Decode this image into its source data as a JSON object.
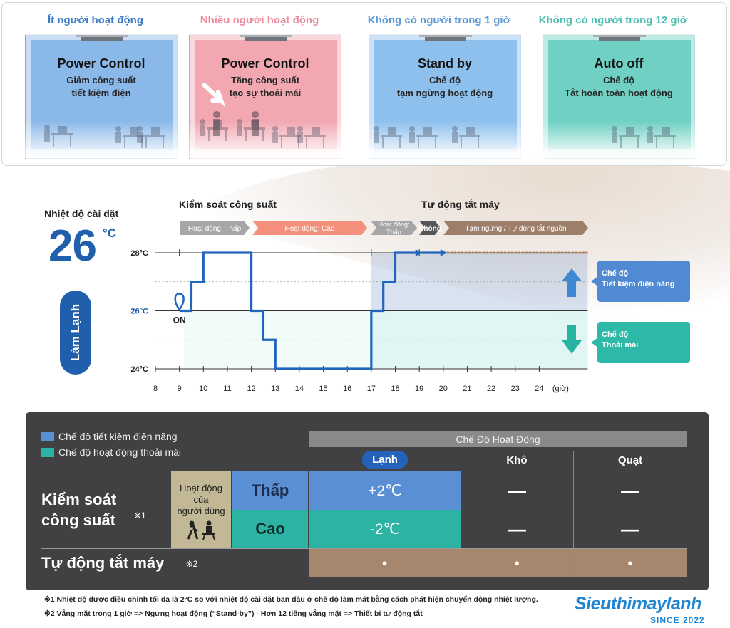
{
  "cards": [
    {
      "title": "Ít người hoạt động",
      "title_color": "#3a7cc6",
      "heading": "Power Control",
      "line1": "Giảm công suất",
      "line2": "tiết kiệm điện",
      "room_color": "#8ab8e8"
    },
    {
      "title": "Nhiều người hoạt động",
      "title_color": "#f08a9a",
      "heading": "Power Control",
      "line1": "Tăng công suất",
      "line2": "tạo sự thoải mái",
      "room_color": "#f2a7b1"
    },
    {
      "title": "Không có người trong 1 giờ",
      "title_color": "#5d9ad6",
      "heading": "Stand by",
      "line1": "Chế độ",
      "line2": "tạm ngừng hoạt động",
      "room_color": "#8ec0ee"
    },
    {
      "title": "Không có người trong 12 giờ",
      "title_color": "#4fc1b3",
      "heading": "Auto off",
      "line1": "Chế độ",
      "line2": "Tắt hoàn toàn hoạt động",
      "room_color": "#6fd0c3"
    }
  ],
  "setting": {
    "label": "Nhiệt độ cài đặt",
    "temp": "26",
    "unit": "°C",
    "mode": "Làm Lạnh"
  },
  "sections": {
    "power": "Kiểm soát công suất",
    "auto": "Tự động tắt máy"
  },
  "phases": [
    {
      "label": "Hoạt động: Thấp",
      "color": "#a6a6a6"
    },
    {
      "label": "Hoạt động: Cao",
      "color": "#f4907c"
    },
    {
      "label": "Hoạt động:\nThấp",
      "color": "#a6a6a6"
    },
    {
      "label": "Không",
      "color": "#555555"
    },
    {
      "label": "Tạm ngừng / Tự động tắt nguồn",
      "color": "#9c7e6a"
    }
  ],
  "chart_data": {
    "type": "line",
    "title": "",
    "xlabel": "(giờ)",
    "x_ticks": [
      "8",
      "9",
      "10",
      "11",
      "12",
      "13",
      "14",
      "15",
      "16",
      "17",
      "18",
      "19",
      "20",
      "21",
      "22",
      "23",
      "24"
    ],
    "y_ticks": [
      "24°C",
      "26°C",
      "28°C"
    ],
    "ylim": [
      24,
      28
    ],
    "xlim": [
      8,
      24
    ],
    "series": [
      {
        "points": [
          [
            9,
            26
          ],
          [
            9.5,
            26
          ],
          [
            9.5,
            27
          ],
          [
            10,
            27
          ],
          [
            10,
            28
          ],
          [
            12,
            28
          ],
          [
            12,
            26
          ],
          [
            12.5,
            26
          ],
          [
            12.5,
            25
          ],
          [
            13,
            25
          ],
          [
            13,
            24
          ],
          [
            17,
            24
          ],
          [
            17,
            26
          ],
          [
            17.5,
            26
          ],
          [
            17.5,
            27
          ],
          [
            18,
            27
          ],
          [
            18,
            28
          ],
          [
            20,
            28
          ]
        ]
      }
    ],
    "off_segment": [
      20,
      24
    ],
    "on_label": "ON",
    "on_x": 9
  },
  "chart_legend": [
    {
      "line1": "Chế độ",
      "line2": "Tiết kiệm điện năng",
      "color": "#4f8ad2"
    },
    {
      "line1": "Chế độ",
      "line2": "Thoải mái",
      "color": "#2eb8a7"
    }
  ],
  "table": {
    "legend": [
      {
        "label": "Chế độ tiết kiệm điện năng",
        "color": "#5b8fd4"
      },
      {
        "label": "Chế độ hoạt động thoải mái",
        "color": "#2db3a3"
      }
    ],
    "header": "Chế Độ Hoạt Động",
    "cols": [
      "Lạnh",
      "Khô",
      "Quạt"
    ],
    "row_power": "Kiểm soát\ncông suất",
    "row_power_note": "※1",
    "user_activity": "Hoạt động\ncủa\nngười dùng",
    "low": "Thấp",
    "high": "Cao",
    "low_values": [
      "+2℃",
      "—",
      "—"
    ],
    "high_values": [
      "-2℃",
      "—",
      "—"
    ],
    "row_auto": "Tự động tắt máy",
    "row_auto_note": "※2",
    "auto_values": [
      "●",
      "●",
      "●"
    ]
  },
  "notes": [
    "※1  Nhiệt độ được điều chỉnh tối đa là 2°C so với nhiệt độ cài đặt ban đầu ở chế độ làm mát bằng cách phát hiện chuyển động nhiệt lượng.",
    "※2  Vắng mặt trong 1 giờ => Ngưng hoạt động (“Stand-by”) - Hơn 12 tiếng vắng mặt => Thiết bị tự động tắt"
  ],
  "logo": {
    "name": "Sieuthimaylanh",
    "since": "SINCE 2022"
  }
}
